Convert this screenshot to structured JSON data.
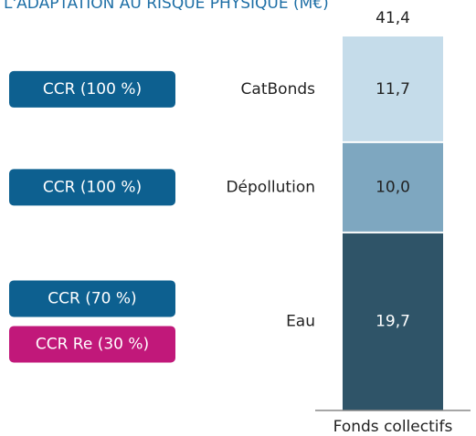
{
  "chart_data": {
    "type": "stacked_bar",
    "title": "L'ADAPTATION AU RISQUE PHYSIQUE (M€)",
    "category": "Fonds collectifs",
    "total": {
      "value": 41.4,
      "label": "41,4"
    },
    "series": [
      {
        "name": "Eau",
        "color": "#2f5468",
        "values": [
          19.7
        ],
        "value_labels": [
          "19,7"
        ],
        "badges": [
          {
            "text": "CCR (70 %)",
            "color": "#0d6090"
          },
          {
            "text": "CCR Re (30 %)",
            "color": "#c1187a"
          }
        ]
      },
      {
        "name": "Dépollution",
        "color": "#7ea7c0",
        "values": [
          10.0
        ],
        "value_labels": [
          "10,0"
        ],
        "badges": [
          {
            "text": "CCR (100 %)",
            "color": "#0d6090"
          }
        ]
      },
      {
        "name": "CatBonds",
        "color": "#c5dcea",
        "values": [
          11.7
        ],
        "value_labels": [
          "11,7"
        ],
        "badges": [
          {
            "text": "CCR (100 %)",
            "color": "#0d6090"
          }
        ]
      }
    ]
  }
}
